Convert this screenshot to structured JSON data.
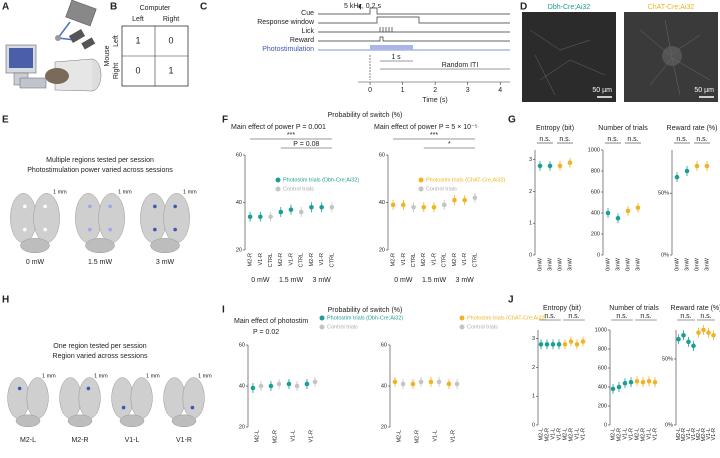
{
  "panel_labels": [
    "A",
    "B",
    "C",
    "D",
    "E",
    "F",
    "G",
    "H",
    "I",
    "J"
  ],
  "B": {
    "col_title": "Computer",
    "cols": [
      "Left",
      "Right"
    ],
    "row_title": "Mouse",
    "rows": [
      "Left",
      "Right"
    ],
    "cells": [
      [
        1,
        0
      ],
      [
        0,
        1
      ]
    ]
  },
  "C": {
    "tone": "5 kHz, 0.2 s",
    "rows": [
      "Cue",
      "Response window",
      "Lick",
      "Reward",
      "Photostimulation"
    ],
    "scale": "1 s",
    "iti": "Random ITI",
    "xlabel": "Time (s)",
    "xticks": [
      0,
      1,
      2,
      3,
      4
    ],
    "xlim": [
      -1.6,
      4.3
    ]
  },
  "D": {
    "images": [
      {
        "title": "Dbh-Cre;Ai32",
        "scale": "50 µm",
        "color": "#1a9e95"
      },
      {
        "title": "ChAT-Cre;Ai32",
        "scale": "50 µm",
        "color": "#f0b323"
      }
    ]
  },
  "E": {
    "text": [
      "Multiple regions tested per session",
      "Photostimulation power varied across sessions"
    ],
    "scale": "1 mm",
    "brains": [
      "0 mW",
      "1.5 mW",
      "3 mW"
    ]
  },
  "F": {
    "title": "Probability of switch (%)",
    "charts": [
      {
        "type": "dot",
        "effect": "Main effect of power P = 0.001",
        "significance": [
          "***",
          "P = 0.08"
        ],
        "categories": [
          "M2-R",
          "V1-R",
          "CTRL",
          "M2-R",
          "V1-R",
          "CTRL",
          "M2-R",
          "V1-R",
          "CTRL"
        ],
        "groups": [
          "0 mW",
          "1.5 mW",
          "3 mW"
        ],
        "ylim": [
          20,
          60
        ],
        "yticks": [
          20,
          40,
          60
        ],
        "series": [
          {
            "name": "Photostim trials (Dbh-Cre;Ai32)",
            "color": "#1a9e95",
            "values": [
              34,
              34,
              null,
              36,
              37,
              null,
              38,
              38,
              null
            ]
          },
          {
            "name": "Control trials",
            "color": "#c4c4c4",
            "values": [
              null,
              null,
              34,
              null,
              null,
              36,
              null,
              null,
              38
            ]
          }
        ]
      },
      {
        "type": "dot",
        "effect": "Main effect of power P = 5 × 10⁻⁵",
        "significance": [
          "***",
          "*"
        ],
        "categories": [
          "M2-R",
          "V1-R",
          "CTRL",
          "M2-R",
          "V1-R",
          "CTRL",
          "M2-R",
          "V1-R",
          "CTRL"
        ],
        "groups": [
          "0 mW",
          "1.5 mW",
          "3 mW"
        ],
        "ylim": [
          20,
          60
        ],
        "yticks": [
          20,
          40,
          60
        ],
        "series": [
          {
            "name": "Photostim trials (ChAT-Cre;Ai32)",
            "color": "#f0b323",
            "values": [
              39,
              39,
              null,
              38,
              38,
              null,
              41,
              41,
              null
            ]
          },
          {
            "name": "Control trials",
            "color": "#c4c4c4",
            "values": [
              null,
              null,
              38,
              null,
              null,
              39,
              null,
              null,
              42
            ]
          }
        ]
      }
    ]
  },
  "G": {
    "charts": [
      {
        "type": "dot",
        "title": "Entropy (bit)",
        "significance": [
          "n.s.",
          "n.s."
        ],
        "categories": [
          "0mW",
          "3mW",
          "0mW",
          "3mW"
        ],
        "ylim": [
          0,
          3.3
        ],
        "yticks": [
          0,
          1,
          2,
          3
        ],
        "series": [
          {
            "color": "#1a9e95",
            "values": [
              2.8,
              2.8,
              null,
              null
            ]
          },
          {
            "color": "#f0b323",
            "values": [
              null,
              null,
              2.8,
              2.9
            ]
          }
        ]
      },
      {
        "type": "dot",
        "title": "Number of trials",
        "significance": [
          "n.s.",
          "n.s."
        ],
        "categories": [
          "0mW",
          "3mW",
          "0mW",
          "3mW"
        ],
        "ylim": [
          0,
          1000
        ],
        "yticks": [
          0,
          200,
          400,
          600,
          800,
          1000
        ],
        "series": [
          {
            "color": "#1a9e95",
            "values": [
              400,
              350,
              null,
              null
            ]
          },
          {
            "color": "#f0b323",
            "values": [
              null,
              null,
              420,
              450
            ]
          }
        ]
      },
      {
        "type": "dot",
        "title": "Reward rate (%)",
        "significance": [
          "n.s.",
          "n.s."
        ],
        "categories": [
          "0mW",
          "3mW",
          "0mW",
          "3mW"
        ],
        "ylim": [
          0,
          85
        ],
        "yticks": [
          {
            "value": 0,
            "label": "0%"
          },
          {
            "value": 50,
            "label": "50%"
          }
        ],
        "series": [
          {
            "color": "#1a9e95",
            "values": [
              63,
              68,
              null,
              null
            ]
          },
          {
            "color": "#f0b323",
            "values": [
              null,
              null,
              72,
              72
            ]
          }
        ]
      }
    ]
  },
  "H": {
    "text": [
      "One region tested per session",
      "Region varied across sessions"
    ],
    "scale": "1 mm",
    "brains": [
      "M2-L",
      "M2-R",
      "V1-L",
      "V1-R"
    ]
  },
  "I": {
    "title": "Probability of switch (%)",
    "charts": [
      {
        "type": "dot",
        "effect": "Main effect of photostim",
        "p": "P = 0.02",
        "categories": [
          "M2-L",
          "M2-R",
          "V1-L",
          "V1-R"
        ],
        "ylim": [
          20,
          60
        ],
        "yticks": [
          20,
          40,
          60
        ],
        "series": [
          {
            "name": "Photostim trials (Dbh-Cre;Ai32)",
            "color": "#1a9e95",
            "values": [
              39,
              40,
              41,
              41
            ]
          },
          {
            "name": "Control trials",
            "color": "#c4c4c4",
            "values": [
              40,
              41,
              40,
              42
            ]
          }
        ]
      },
      {
        "type": "dot",
        "categories": [
          "M2-L",
          "M2-R",
          "V1-L",
          "V1-R"
        ],
        "ylim": [
          20,
          60
        ],
        "yticks": [
          20,
          40,
          60
        ],
        "series": [
          {
            "name": "Photostim trials (ChAT-Cre;Ai32)",
            "color": "#f0b323",
            "values": [
              42,
              41,
              42,
              41
            ]
          },
          {
            "name": "Control trials",
            "color": "#c4c4c4",
            "values": [
              41,
              42,
              42,
              41
            ]
          }
        ]
      }
    ]
  },
  "J": {
    "charts": [
      {
        "type": "dot",
        "title": "Entropy (bit)",
        "significance": [
          "n.s.",
          "n.s."
        ],
        "categories": [
          "M2-L",
          "M2-R",
          "V1-L",
          "V1-R",
          "M2-L",
          "M2-R",
          "V1-L",
          "V1-R"
        ],
        "ylim": [
          0,
          3.3
        ],
        "yticks": [
          0,
          1,
          2,
          3
        ],
        "series": [
          {
            "color": "#1a9e95",
            "values": [
              2.8,
              2.8,
              2.8,
              2.8,
              null,
              null,
              null,
              null
            ]
          },
          {
            "color": "#f0b323",
            "values": [
              null,
              null,
              null,
              null,
              2.8,
              2.9,
              2.8,
              2.9
            ]
          }
        ]
      },
      {
        "type": "dot",
        "title": "Number of trials",
        "significance": [
          "n.s.",
          "n.s."
        ],
        "categories": [
          "M2-L",
          "M2-R",
          "V1-L",
          "V1-R",
          "M2-L",
          "M2-R",
          "V1-L",
          "V1-R"
        ],
        "ylim": [
          0,
          1000
        ],
        "yticks": [
          0,
          200,
          400,
          600,
          800,
          1000
        ],
        "series": [
          {
            "color": "#1a9e95",
            "values": [
              380,
              400,
              440,
              450,
              null,
              null,
              null,
              null
            ]
          },
          {
            "color": "#f0b323",
            "values": [
              null,
              null,
              null,
              null,
              460,
              450,
              460,
              450
            ]
          }
        ]
      },
      {
        "type": "dot",
        "title": "Reward rate (%)",
        "significance": [
          "n.s.",
          "n.s."
        ],
        "categories": [
          "M2-L",
          "M2-R",
          "V1-L",
          "V1-R",
          "M2-L",
          "M2-R",
          "V1-L",
          "V1-R"
        ],
        "ylim": [
          0,
          72
        ],
        "yticks": [
          {
            "value": 0,
            "label": "0%"
          },
          {
            "value": 50,
            "label": "50%"
          }
        ],
        "series": [
          {
            "color": "#1a9e95",
            "values": [
              65,
              68,
              63,
              60,
              null,
              null,
              null,
              null
            ]
          },
          {
            "color": "#f0b323",
            "values": [
              null,
              null,
              null,
              null,
              70,
              72,
              70,
              68
            ]
          }
        ]
      }
    ]
  }
}
